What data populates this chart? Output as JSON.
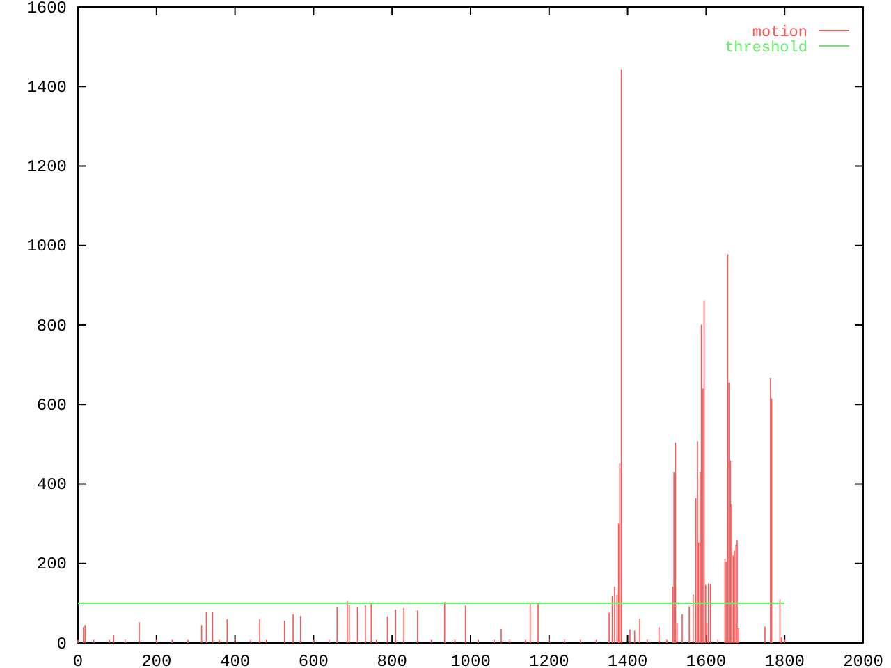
{
  "chart_data": {
    "type": "bar",
    "xlim": [
      0,
      2000
    ],
    "xticks": [
      0,
      200,
      400,
      600,
      800,
      1000,
      1200,
      1400,
      1600,
      1800,
      2000
    ],
    "ylim": [
      0,
      1600
    ],
    "yticks": [
      0,
      200,
      400,
      600,
      800,
      1000,
      1200,
      1400,
      1600
    ],
    "grid": false,
    "legend": "top right",
    "series": [
      {
        "name": "motion",
        "color": "#ff5555",
        "x": [
          0,
          14,
          18,
          40,
          80,
          91,
          120,
          156,
          200,
          240,
          280,
          315,
          327,
          343,
          360,
          380,
          400,
          440,
          463,
          480,
          526,
          548,
          567,
          600,
          640,
          660,
          686,
          691,
          712,
          732,
          747,
          760,
          788,
          809,
          830,
          865,
          900,
          934,
          960,
          987,
          1020,
          1060,
          1078,
          1100,
          1140,
          1152,
          1172,
          1200,
          1240,
          1280,
          1320,
          1353,
          1361,
          1367,
          1373,
          1377,
          1380,
          1384,
          1406,
          1418,
          1431,
          1450,
          1480,
          1500,
          1515,
          1518,
          1522,
          1526,
          1539,
          1557,
          1567,
          1574,
          1578,
          1581,
          1585,
          1588,
          1592,
          1595,
          1599,
          1602,
          1606,
          1611,
          1630,
          1648,
          1651,
          1655,
          1658,
          1662,
          1665,
          1669,
          1672,
          1676,
          1679,
          1683,
          1750,
          1764,
          1767,
          1788,
          1792,
          1800
        ],
        "values": [
          8,
          40,
          45,
          8,
          8,
          21,
          8,
          52,
          8,
          8,
          8,
          45,
          77,
          77,
          8,
          60,
          8,
          8,
          60,
          8,
          56,
          72,
          68,
          8,
          8,
          91,
          106,
          95,
          91,
          95,
          98,
          8,
          67,
          84,
          88,
          82,
          8,
          103,
          8,
          94,
          8,
          8,
          35,
          8,
          8,
          98,
          98,
          8,
          8,
          8,
          8,
          76,
          119,
          142,
          121,
          300,
          451,
          1443,
          34,
          31,
          61,
          8,
          40,
          8,
          142,
          430,
          504,
          49,
          72,
          92,
          122,
          364,
          507,
          253,
          430,
          801,
          640,
          862,
          146,
          49,
          150,
          148,
          8,
          212,
          204,
          978,
          655,
          459,
          349,
          220,
          232,
          247,
          259,
          37,
          41,
          667,
          615,
          110,
          14,
          8
        ]
      },
      {
        "name": "threshold",
        "type": "line",
        "color": "#66ee66",
        "x": [
          0,
          1800
        ],
        "values": [
          100,
          100
        ]
      }
    ]
  }
}
